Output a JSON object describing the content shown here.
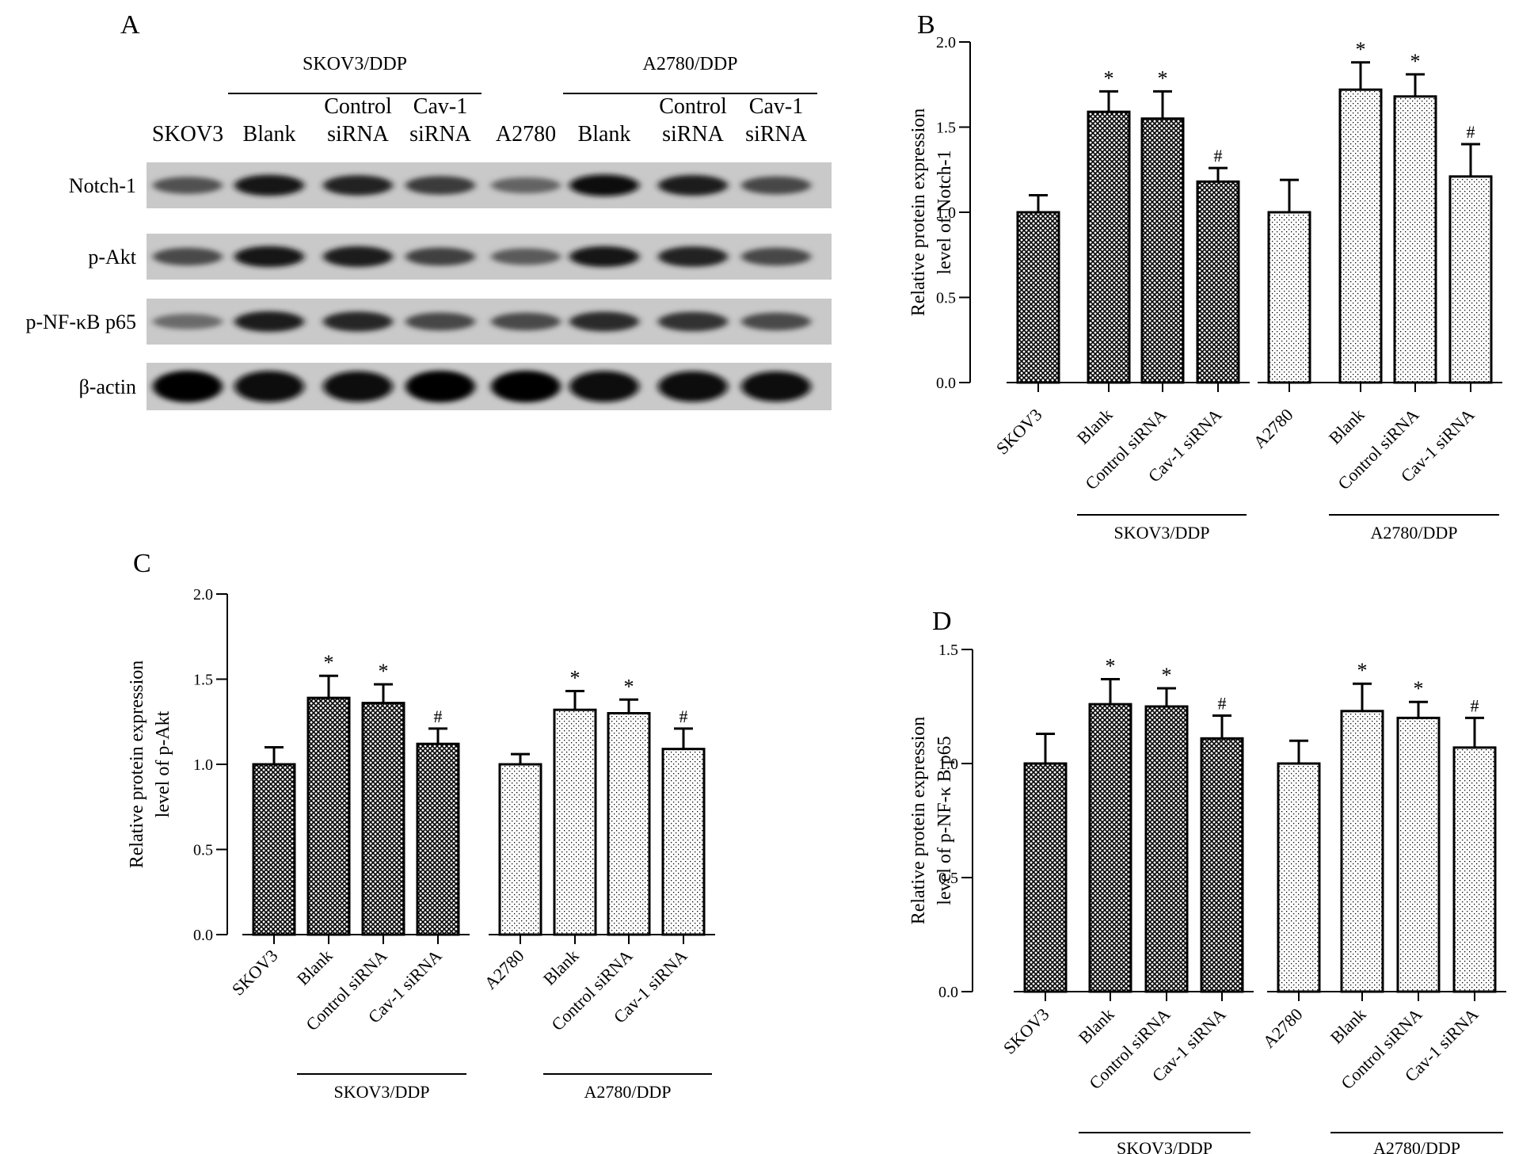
{
  "panel_a": {
    "letter": "A",
    "groups": [
      {
        "label": "SKOV3/DDP",
        "lanes": [
          1,
          3
        ]
      },
      {
        "label": "A2780/DDP",
        "lanes": [
          5,
          7
        ]
      }
    ],
    "lanes": [
      {
        "line1": "",
        "line2": "SKOV3"
      },
      {
        "line1": "",
        "line2": "Blank"
      },
      {
        "line1": "Control",
        "line2": "siRNA"
      },
      {
        "line1": "Cav-1",
        "line2": "siRNA"
      },
      {
        "line1": "",
        "line2": "A2780"
      },
      {
        "line1": "",
        "line2": "Blank"
      },
      {
        "line1": "Control",
        "line2": "siRNA"
      },
      {
        "line1": "Cav-1",
        "line2": "siRNA"
      }
    ],
    "rows": [
      {
        "label": "Notch-1",
        "intensity": [
          0.55,
          0.9,
          0.82,
          0.68,
          0.45,
          0.95,
          0.85,
          0.62
        ]
      },
      {
        "label": "p-Akt",
        "intensity": [
          0.6,
          0.9,
          0.87,
          0.65,
          0.5,
          0.88,
          0.84,
          0.62
        ]
      },
      {
        "label": "p-NF-κB p65",
        "intensity": [
          0.4,
          0.85,
          0.8,
          0.62,
          0.6,
          0.78,
          0.75,
          0.6
        ]
      },
      {
        "label": "β-actin",
        "intensity": [
          1.0,
          0.98,
          0.95,
          1.0,
          1.0,
          0.97,
          0.95,
          0.93
        ]
      }
    ]
  },
  "chart_data": [
    {
      "panel": "B",
      "type": "bar",
      "categories": [
        "SKOV3",
        "Blank",
        "Control siRNA",
        "Cav-1 siRNA",
        "A2780",
        "Blank",
        "Control siRNA",
        "Cav-1 siRNA"
      ],
      "values": [
        1.0,
        1.59,
        1.55,
        1.18,
        1.0,
        1.72,
        1.68,
        1.21
      ],
      "errors": [
        0.1,
        0.12,
        0.16,
        0.08,
        0.19,
        0.16,
        0.13,
        0.19
      ],
      "marks": [
        "",
        "*",
        "*",
        "#",
        "",
        "*",
        "*",
        "#"
      ],
      "fills": [
        "cross",
        "cross",
        "cross",
        "cross",
        "dots",
        "dots",
        "dots",
        "dots"
      ],
      "groups": [
        {
          "label": "SKOV3/DDP",
          "from": 1,
          "to": 3
        },
        {
          "label": "A2780/DDP",
          "from": 5,
          "to": 7
        }
      ],
      "ylabel_line1": "Relative protein expression",
      "ylabel_line2": "level of Notch-1",
      "ylim": [
        0,
        2.0
      ],
      "yticks": [
        "0.0",
        "0.5",
        "1.0",
        "1.5",
        "2.0"
      ]
    },
    {
      "panel": "C",
      "type": "bar",
      "categories": [
        "SKOV3",
        "Blank",
        "Control siRNA",
        "Cav-1 siRNA",
        "A2780",
        "Blank",
        "Control siRNA",
        "Cav-1 siRNA"
      ],
      "values": [
        1.0,
        1.39,
        1.36,
        1.12,
        1.0,
        1.32,
        1.3,
        1.09
      ],
      "errors": [
        0.1,
        0.13,
        0.11,
        0.09,
        0.06,
        0.11,
        0.08,
        0.12
      ],
      "marks": [
        "",
        "*",
        "*",
        "#",
        "",
        "*",
        "*",
        "#"
      ],
      "fills": [
        "cross",
        "cross",
        "cross",
        "cross",
        "dots",
        "dots",
        "dots",
        "dots"
      ],
      "groups": [
        {
          "label": "SKOV3/DDP",
          "from": 1,
          "to": 3
        },
        {
          "label": "A2780/DDP",
          "from": 5,
          "to": 7
        }
      ],
      "ylabel_line1": "Relative protein expression",
      "ylabel_line2": "level of p-Akt",
      "ylim": [
        0,
        2.0
      ],
      "yticks": [
        "0.0",
        "0.5",
        "1.0",
        "1.5",
        "2.0"
      ]
    },
    {
      "panel": "D",
      "type": "bar",
      "categories": [
        "SKOV3",
        "Blank",
        "Control siRNA",
        "Cav-1 siRNA",
        "A2780",
        "Blank",
        "Control siRNA",
        "Cav-1 siRNA"
      ],
      "values": [
        1.0,
        1.26,
        1.25,
        1.11,
        1.0,
        1.23,
        1.2,
        1.07
      ],
      "errors": [
        0.13,
        0.11,
        0.08,
        0.1,
        0.1,
        0.12,
        0.07,
        0.13
      ],
      "marks": [
        "",
        "*",
        "*",
        "#",
        "",
        "*",
        "*",
        "#"
      ],
      "fills": [
        "cross",
        "cross",
        "cross",
        "cross",
        "dots",
        "dots",
        "dots",
        "dots"
      ],
      "groups": [
        {
          "label": "SKOV3/DDP",
          "from": 1,
          "to": 3
        },
        {
          "label": "A2780/DDP",
          "from": 5,
          "to": 7
        }
      ],
      "ylabel_line1": "Relative protein expression",
      "ylabel_line2": "level of p-NF-κ B p65",
      "ylim": [
        0,
        1.5
      ],
      "yticks": [
        "0.0",
        "0.5",
        "1.0",
        "1.5"
      ]
    }
  ]
}
